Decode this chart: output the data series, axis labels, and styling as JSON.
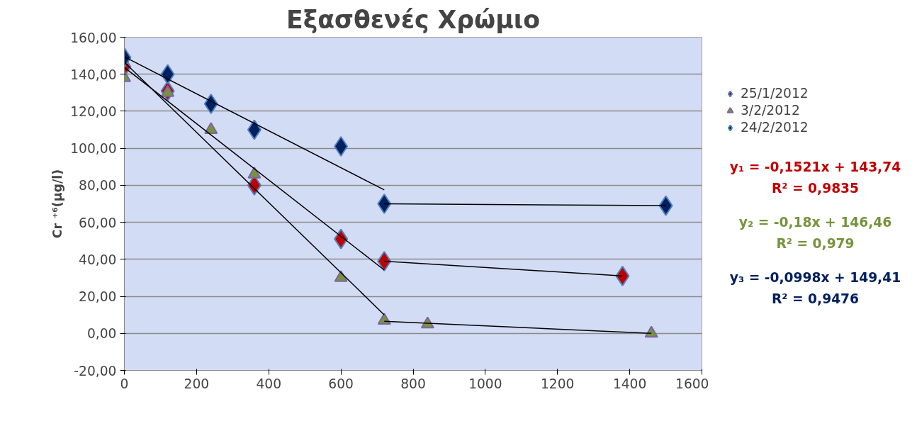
{
  "chart_data": {
    "type": "scatter",
    "title": "Εξασθενές Χρώμιο",
    "ylabel": "Cr ⁺⁶(μg/l)",
    "xlim": [
      0,
      1600
    ],
    "xticks": [
      0,
      200,
      400,
      600,
      800,
      1000,
      1200,
      1400,
      1600
    ],
    "ylim": [
      -20,
      160
    ],
    "yticks": [
      {
        "value": -20,
        "label": "-20,00"
      },
      {
        "value": 0,
        "label": "0,00"
      },
      {
        "value": 20,
        "label": "20,00"
      },
      {
        "value": 40,
        "label": "40,00"
      },
      {
        "value": 60,
        "label": "60,00"
      },
      {
        "value": 80,
        "label": "80,00"
      },
      {
        "value": 100,
        "label": "100,00"
      },
      {
        "value": 120,
        "label": "120,00"
      },
      {
        "value": 140,
        "label": "140,00"
      },
      {
        "value": 160,
        "label": "160,00"
      }
    ],
    "grid": "y",
    "legend": "right",
    "series": [
      {
        "name": "25/1/2012",
        "color": "#c00000",
        "marker": "diamond",
        "x": [
          0,
          120,
          360,
          600,
          720,
          1380
        ],
        "values": [
          144,
          131,
          80,
          51,
          39,
          31
        ]
      },
      {
        "name": "3/2/2012",
        "color": "#77933c",
        "marker": "triangle",
        "x": [
          0,
          120,
          240,
          360,
          600,
          720,
          840,
          1460
        ],
        "values": [
          138,
          130,
          110,
          86,
          30,
          7,
          5,
          0
        ]
      },
      {
        "name": "24/2/2012",
        "color": "#002060",
        "marker": "diamond",
        "x": [
          0,
          120,
          240,
          360,
          600,
          720,
          1500
        ],
        "values": [
          149,
          140,
          124,
          110,
          101,
          70,
          69
        ]
      },
      {
        "type": "line",
        "color": "#000000",
        "x": [
          0,
          720
        ],
        "values": [
          143.7,
          34.2
        ]
      },
      {
        "type": "line",
        "color": "#000000",
        "x": [
          0,
          720
        ],
        "values": [
          146.5,
          10
        ]
      },
      {
        "type": "line",
        "color": "#000000",
        "x": [
          0,
          720
        ],
        "values": [
          149.4,
          77.5
        ]
      },
      {
        "type": "line",
        "color": "#000000",
        "x": [
          720,
          1380
        ],
        "values": [
          39,
          31
        ]
      },
      {
        "type": "line",
        "color": "#000000",
        "x": [
          720,
          1460
        ],
        "values": [
          6.5,
          0
        ]
      },
      {
        "type": "line",
        "color": "#000000",
        "x": [
          720,
          1500
        ],
        "values": [
          70,
          69
        ]
      }
    ],
    "annotations": [
      "y₁ = -0,1521x + 143,74",
      "R² = 0,9835",
      "y₂ = -0,18x + 146,46",
      "R² = 0,979",
      "y₃ = -0,0998x + 149,41",
      "R² = 0,9476"
    ]
  }
}
